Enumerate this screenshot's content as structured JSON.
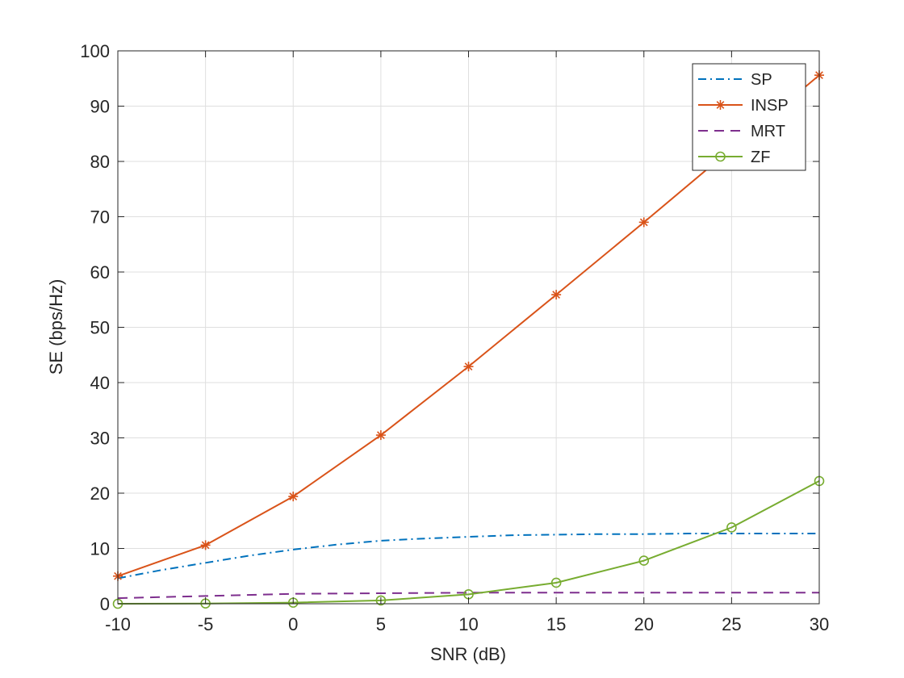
{
  "chart_data": {
    "type": "line",
    "title": "",
    "xlabel": "SNR (dB)",
    "ylabel": "SE (bps/Hz)",
    "xlim": [
      -10,
      30
    ],
    "ylim": [
      0,
      100
    ],
    "xticks": [
      -10,
      -5,
      0,
      5,
      10,
      15,
      20,
      25,
      30
    ],
    "yticks": [
      0,
      10,
      20,
      30,
      40,
      50,
      60,
      70,
      80,
      90,
      100
    ],
    "grid": true,
    "legend_location": "top-right",
    "x": [
      -10,
      -5,
      0,
      5,
      10,
      15,
      20,
      25,
      30
    ],
    "series": [
      {
        "name": "SP",
        "color": "#0072BD",
        "line_style": "dash-dot",
        "marker": "none",
        "x": [
          -10,
          -7.5,
          -5,
          -2.5,
          0,
          2.5,
          5,
          7.5,
          10,
          12.5,
          15,
          17.5,
          20,
          22.5,
          25,
          27.5,
          30
        ],
        "values": [
          4.6,
          6.1,
          7.4,
          8.7,
          9.8,
          10.7,
          11.4,
          11.8,
          12.1,
          12.4,
          12.5,
          12.6,
          12.6,
          12.7,
          12.7,
          12.7,
          12.7
        ]
      },
      {
        "name": "INSP",
        "color": "#D95319",
        "line_style": "solid",
        "marker": "asterisk",
        "values": [
          5.0,
          10.6,
          19.4,
          30.5,
          42.9,
          55.9,
          69.0,
          82.3,
          95.6
        ]
      },
      {
        "name": "MRT",
        "color": "#7E2F8E",
        "line_style": "dashed",
        "marker": "none",
        "values": [
          1.0,
          1.4,
          1.8,
          1.9,
          2.0,
          2.0,
          2.0,
          2.0,
          2.0
        ]
      },
      {
        "name": "ZF",
        "color": "#77AC30",
        "line_style": "solid",
        "marker": "circle",
        "values": [
          0.0,
          0.05,
          0.2,
          0.6,
          1.7,
          3.8,
          7.8,
          13.8,
          22.2
        ]
      }
    ]
  }
}
